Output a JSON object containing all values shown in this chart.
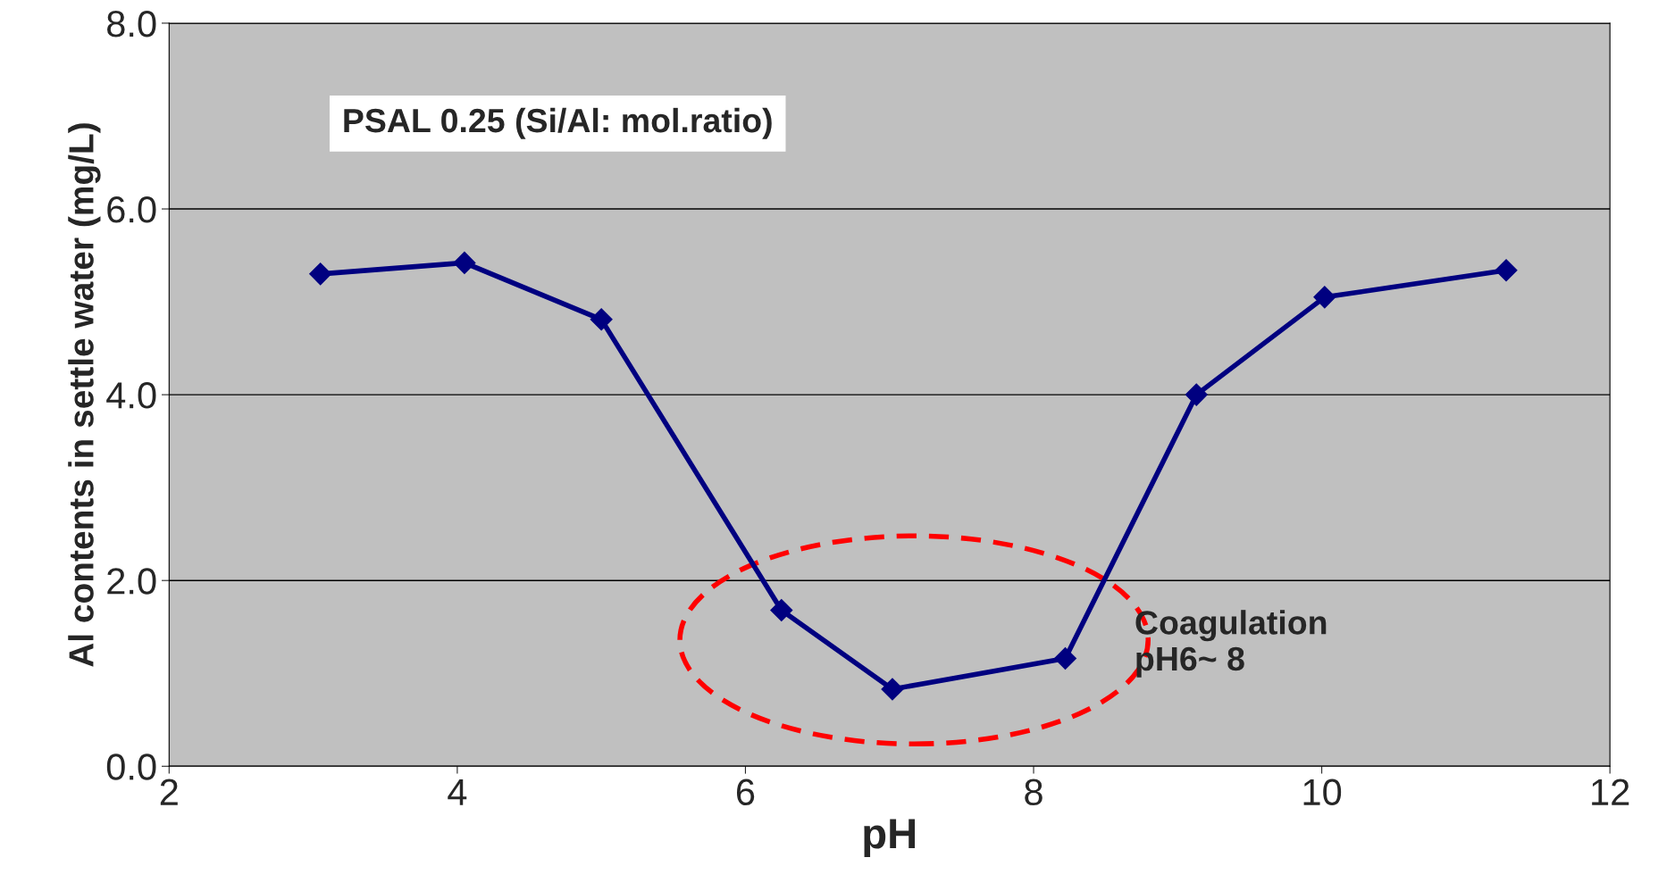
{
  "chart_data": {
    "type": "line",
    "xlabel": "pH",
    "ylabel": "Al contents in settle water (mg/L)",
    "x": [
      3.05,
      4.05,
      5.0,
      6.25,
      7.02,
      8.22,
      9.13,
      10.02,
      11.28
    ],
    "series": [
      {
        "color": "#000080",
        "values": [
          5.3,
          5.42,
          4.81,
          1.68,
          0.83,
          1.16,
          4.0,
          5.05,
          5.34
        ]
      }
    ],
    "xlim": [
      2,
      12
    ],
    "xticks": [
      2,
      4,
      6,
      8,
      10,
      12
    ],
    "ylim": [
      0,
      8
    ],
    "yticks": [
      {
        "value": 0,
        "label": "0.0"
      },
      {
        "value": 2,
        "label": "2.0"
      },
      {
        "value": 4,
        "label": "4.0"
      },
      {
        "value": 6,
        "label": "6.0"
      },
      {
        "value": 8,
        "label": "8.0"
      }
    ],
    "grid": "y",
    "marker": "diamond",
    "line_style": "solid",
    "annotations": [
      "PSAL 0.25 (Si/Al: mol.ratio)",
      "Coagulation\npH6~ 8"
    ]
  }
}
